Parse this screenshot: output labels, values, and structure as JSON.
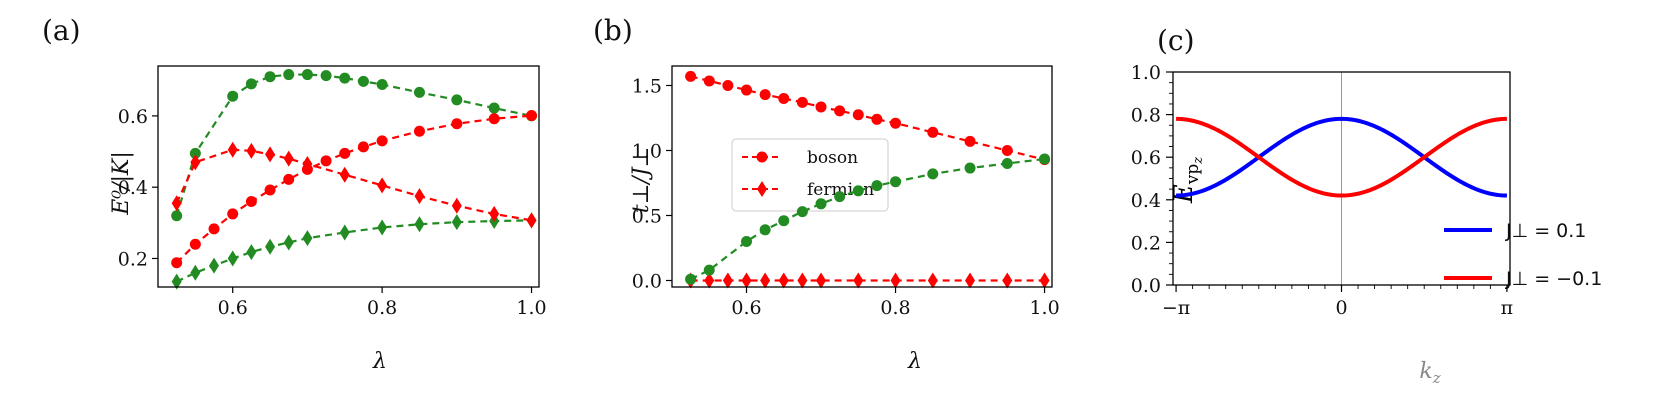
{
  "chart_data": [
    {
      "panel": "(a)",
      "type": "line",
      "xlabel": "λ",
      "ylabel": "E⁰/|K|",
      "xlim": [
        0.5,
        1.01
      ],
      "ylim": [
        0.12,
        0.74
      ],
      "xticks": [
        0.6,
        0.8,
        1.0
      ],
      "xtick_labels": [
        "0.6",
        "0.8",
        "1.0"
      ],
      "yticks": [
        0.2,
        0.4,
        0.6
      ],
      "ytick_labels": [
        "0.2",
        "0.4",
        "0.6"
      ],
      "grid": false,
      "series": [
        {
          "color": "#228B22",
          "marker": "circle",
          "x": [
            0.525,
            0.55,
            0.6,
            0.625,
            0.65,
            0.675,
            0.7,
            0.725,
            0.75,
            0.775,
            0.8,
            0.85,
            0.9,
            0.95,
            1.0
          ],
          "y": [
            0.32,
            0.495,
            0.655,
            0.69,
            0.71,
            0.716,
            0.716,
            0.713,
            0.706,
            0.697,
            0.688,
            0.666,
            0.645,
            0.622,
            0.6
          ]
        },
        {
          "color": "#228B22",
          "marker": "diamond",
          "x": [
            0.525,
            0.55,
            0.575,
            0.6,
            0.625,
            0.65,
            0.675,
            0.7,
            0.75,
            0.8,
            0.85,
            0.9,
            0.95,
            1.0
          ],
          "y": [
            0.135,
            0.16,
            0.18,
            0.2,
            0.218,
            0.233,
            0.245,
            0.257,
            0.273,
            0.287,
            0.296,
            0.302,
            0.305,
            0.307
          ]
        },
        {
          "color": "#ff0000",
          "marker": "circle",
          "x": [
            0.525,
            0.55,
            0.575,
            0.6,
            0.625,
            0.65,
            0.675,
            0.7,
            0.725,
            0.75,
            0.775,
            0.8,
            0.85,
            0.9,
            0.95,
            1.0
          ],
          "y": [
            0.188,
            0.24,
            0.283,
            0.325,
            0.36,
            0.392,
            0.422,
            0.45,
            0.474,
            0.495,
            0.513,
            0.53,
            0.557,
            0.578,
            0.592,
            0.601
          ]
        },
        {
          "color": "#ff0000",
          "marker": "diamond",
          "x": [
            0.525,
            0.55,
            0.6,
            0.625,
            0.65,
            0.675,
            0.7,
            0.75,
            0.8,
            0.85,
            0.9,
            0.95,
            1.0
          ],
          "y": [
            0.355,
            0.47,
            0.505,
            0.502,
            0.492,
            0.48,
            0.465,
            0.435,
            0.405,
            0.375,
            0.348,
            0.325,
            0.307
          ]
        }
      ]
    },
    {
      "panel": "(b)",
      "type": "line",
      "xlabel": "λ",
      "ylabel": "t⊥/J⊥",
      "xlim": [
        0.5,
        1.01
      ],
      "ylim": [
        -0.05,
        1.65
      ],
      "xticks": [
        0.6,
        0.8,
        1.0
      ],
      "xtick_labels": [
        "0.6",
        "0.8",
        "1.0"
      ],
      "yticks": [
        0.0,
        0.5,
        1.0,
        1.5
      ],
      "ytick_labels": [
        "0.0",
        "0.5",
        "1.0",
        "1.5"
      ],
      "grid": false,
      "legend": {
        "position": "center-left",
        "entries": [
          "boson",
          "fermion"
        ]
      },
      "series": [
        {
          "name": "boson",
          "color": "#ff0000",
          "marker": "circle",
          "x": [
            0.525,
            0.55,
            0.575,
            0.6,
            0.625,
            0.65,
            0.675,
            0.7,
            0.725,
            0.75,
            0.775,
            0.8,
            0.85,
            0.9,
            0.95,
            1.0
          ],
          "y": [
            1.57,
            1.535,
            1.5,
            1.465,
            1.43,
            1.4,
            1.37,
            1.335,
            1.305,
            1.275,
            1.24,
            1.21,
            1.14,
            1.07,
            1.0,
            0.93
          ]
        },
        {
          "name": "fermion",
          "color": "#ff0000",
          "marker": "diamond",
          "x": [
            0.525,
            0.55,
            0.575,
            0.6,
            0.625,
            0.65,
            0.675,
            0.7,
            0.75,
            0.8,
            0.85,
            0.9,
            0.95,
            1.0
          ],
          "y": [
            0,
            0,
            0,
            0,
            0,
            0,
            0,
            0,
            0,
            0,
            0,
            0,
            0,
            0
          ]
        },
        {
          "color": "#228B22",
          "marker": "circle",
          "x": [
            0.525,
            0.55,
            0.6,
            0.625,
            0.65,
            0.675,
            0.7,
            0.725,
            0.75,
            0.775,
            0.8,
            0.85,
            0.9,
            0.95,
            1.0
          ],
          "y": [
            0.01,
            0.08,
            0.3,
            0.39,
            0.46,
            0.53,
            0.59,
            0.645,
            0.69,
            0.73,
            0.76,
            0.82,
            0.865,
            0.9,
            0.935
          ]
        }
      ]
    },
    {
      "panel": "(c)",
      "type": "line",
      "xlabel": "k_z",
      "ylabel": "E_vp_z",
      "xlim": [
        -3.2,
        3.2
      ],
      "ylim": [
        0.0,
        1.0
      ],
      "xtick_labels": [
        "−π",
        "0",
        "π"
      ],
      "yticks": [
        0.0,
        0.2,
        0.4,
        0.6,
        0.8,
        1.0
      ],
      "ytick_labels": [
        "0.0",
        "0.2",
        "0.4",
        "0.6",
        "0.8",
        "1.0"
      ],
      "grid": false,
      "vertical_line_at": 0,
      "legend": {
        "position": "bottom-right",
        "entries": [
          "J⊥ = 0.1",
          "J⊥ = −0.1"
        ]
      },
      "series": [
        {
          "name": "J⊥ = 0.1",
          "color": "#0000ff",
          "function": "0.6 + 0.18*cos(k)"
        },
        {
          "name": "J⊥ = −0.1",
          "color": "#ff0000",
          "function": "0.6 - 0.18*cos(k)"
        }
      ]
    }
  ],
  "labels": {
    "panel_a": "(a)",
    "panel_b": "(b)",
    "panel_c": "(c)",
    "legend_b_boson": "boson",
    "legend_b_fermion": "fermion",
    "legend_c_1": "J⊥ = 0.1",
    "legend_c_2": "J⊥ = −0.1"
  }
}
